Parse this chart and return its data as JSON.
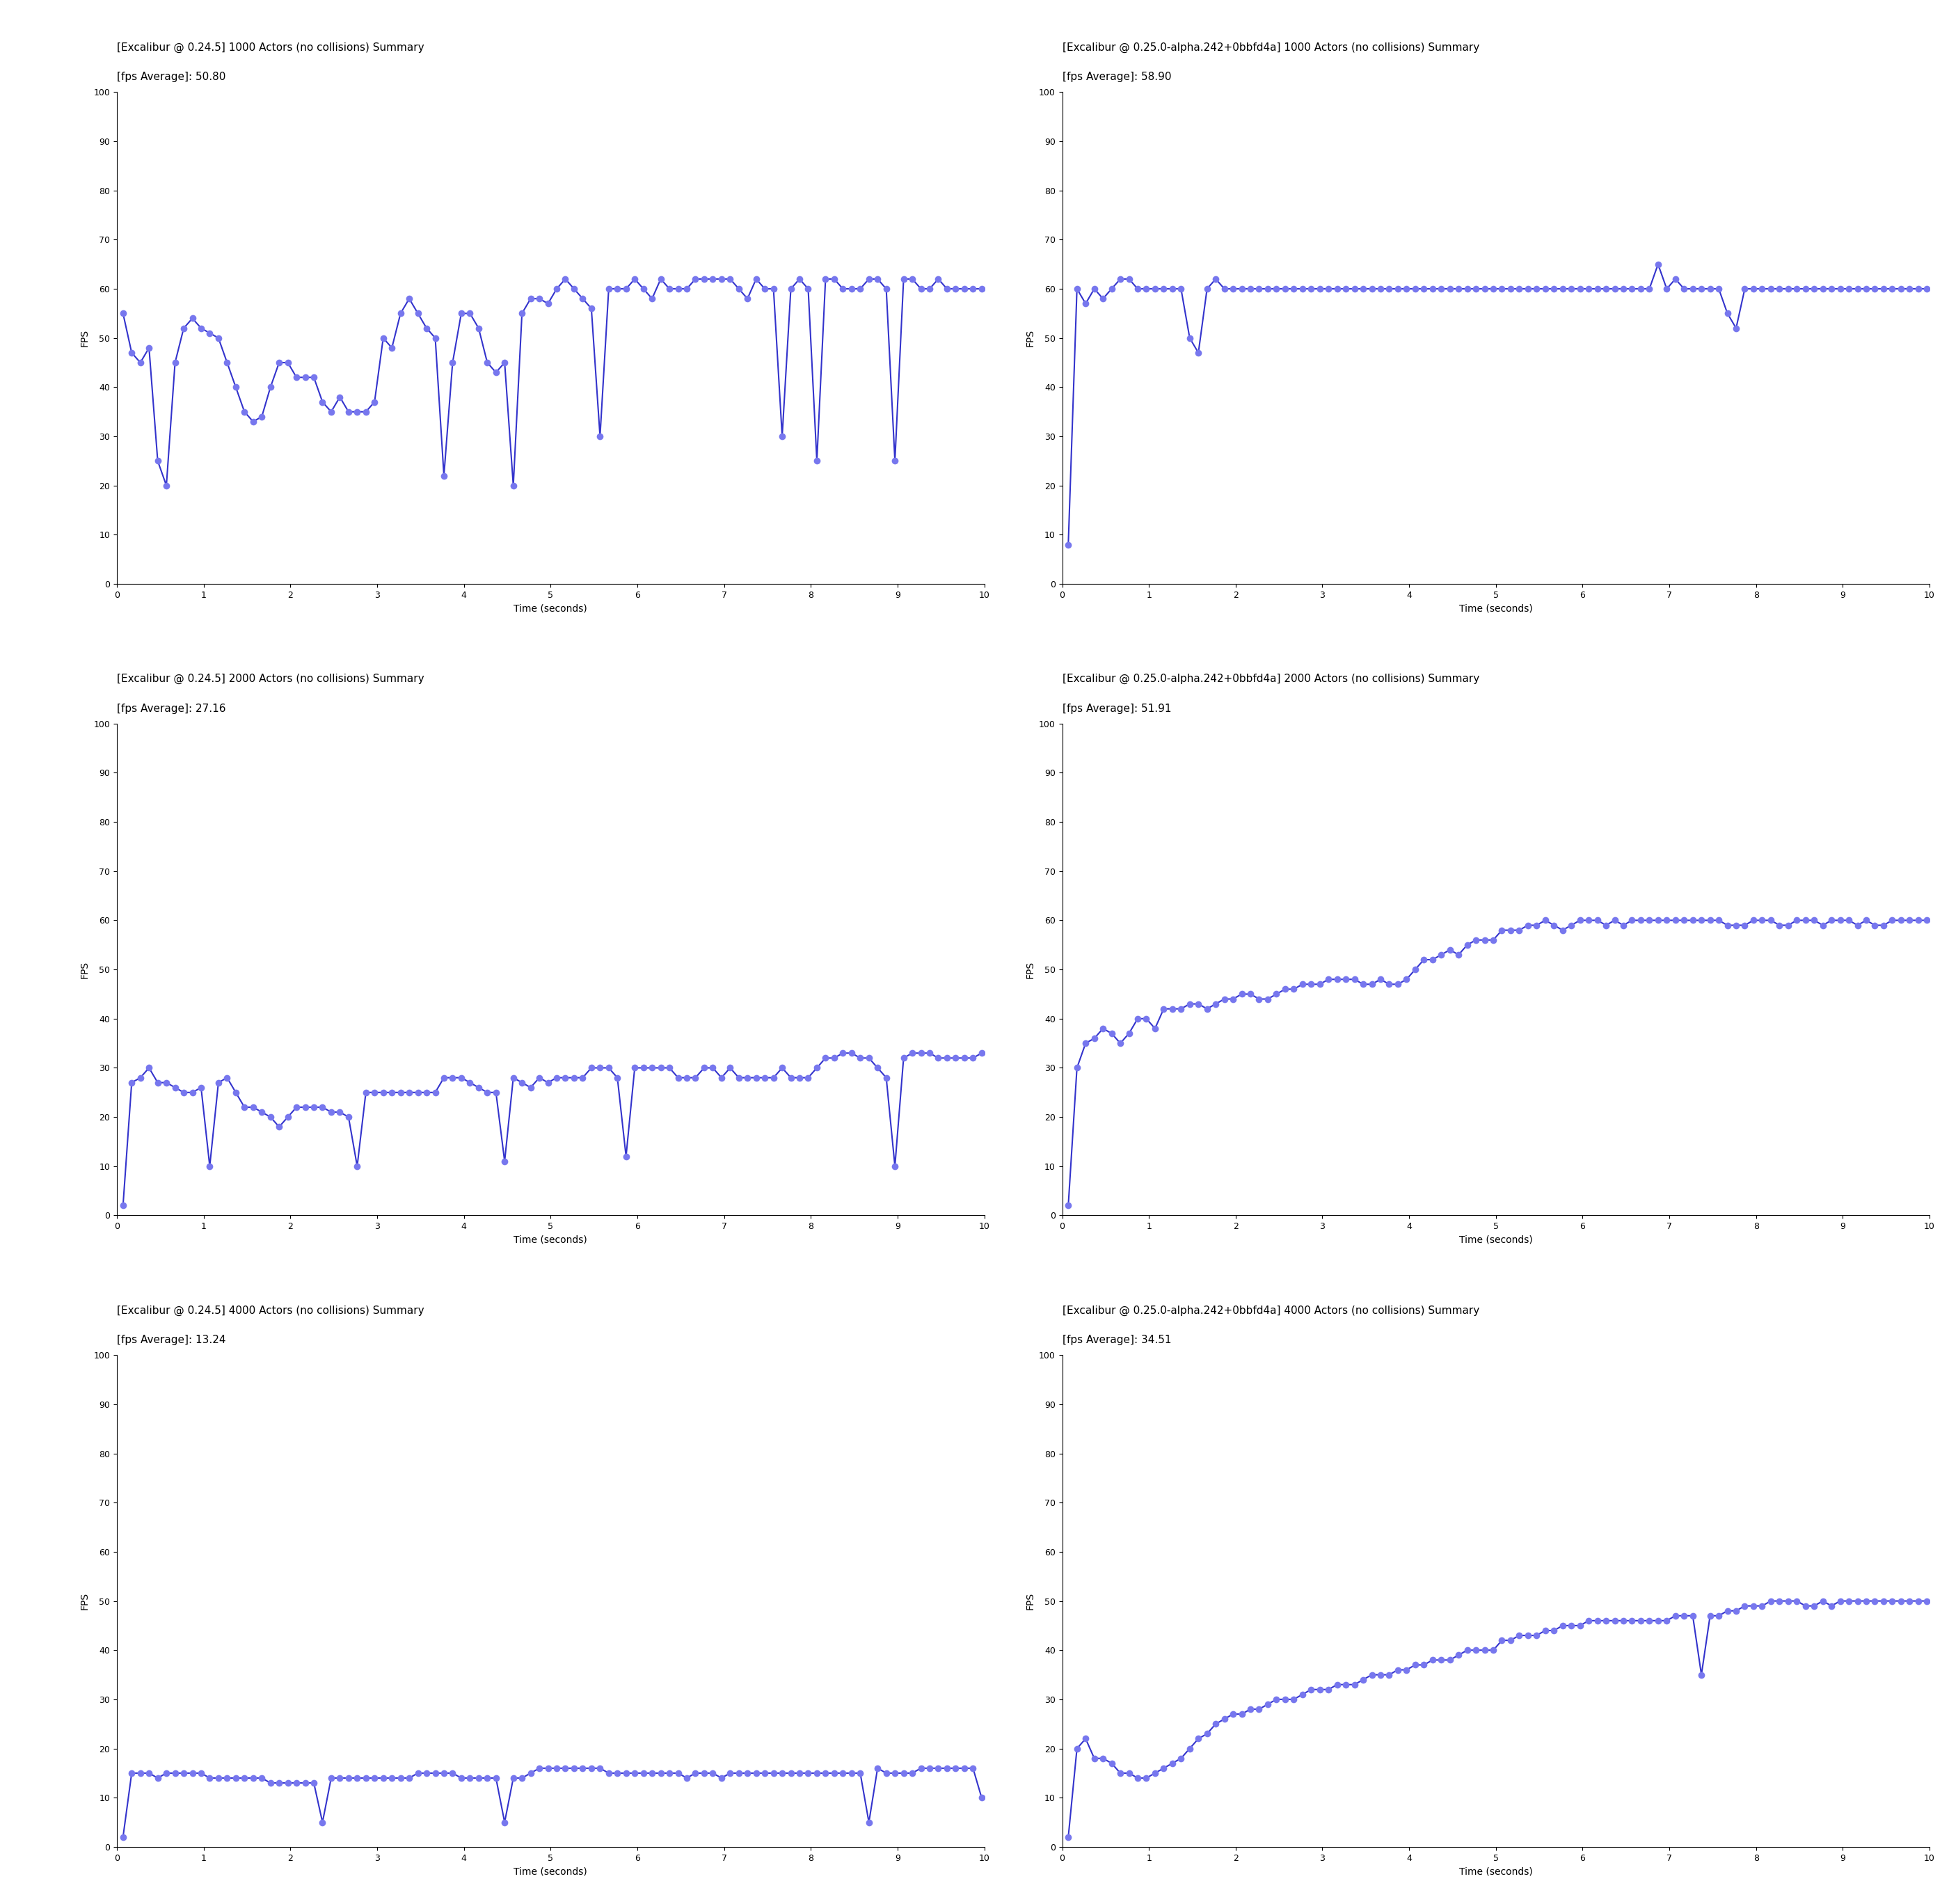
{
  "charts": [
    {
      "title_line1": "[Excalibur @ 0.24.5] 1000 Actors (no collisions) Summary",
      "title_line2": "[fps Average]: 50.80",
      "x": [
        0.07,
        0.17,
        0.27,
        0.37,
        0.47,
        0.57,
        0.67,
        0.77,
        0.87,
        0.97,
        1.07,
        1.17,
        1.27,
        1.37,
        1.47,
        1.57,
        1.67,
        1.77,
        1.87,
        1.97,
        2.07,
        2.17,
        2.27,
        2.37,
        2.47,
        2.57,
        2.67,
        2.77,
        2.87,
        2.97,
        3.07,
        3.17,
        3.27,
        3.37,
        3.47,
        3.57,
        3.67,
        3.77,
        3.87,
        3.97,
        4.07,
        4.17,
        4.27,
        4.37,
        4.47,
        4.57,
        4.67,
        4.77,
        4.87,
        4.97,
        5.07,
        5.17,
        5.27,
        5.37,
        5.47,
        5.57,
        5.67,
        5.77,
        5.87,
        5.97,
        6.07,
        6.17,
        6.27,
        6.37,
        6.47,
        6.57,
        6.67,
        6.77,
        6.87,
        6.97,
        7.07,
        7.17,
        7.27,
        7.37,
        7.47,
        7.57,
        7.67,
        7.77,
        7.87,
        7.97,
        8.07,
        8.17,
        8.27,
        8.37,
        8.47,
        8.57,
        8.67,
        8.77,
        8.87,
        8.97,
        9.07,
        9.17,
        9.27,
        9.37,
        9.47,
        9.57,
        9.67,
        9.77,
        9.87,
        9.97
      ],
      "y": [
        55,
        47,
        45,
        48,
        25,
        20,
        45,
        52,
        54,
        52,
        51,
        50,
        45,
        40,
        35,
        33,
        34,
        40,
        45,
        45,
        42,
        42,
        42,
        37,
        35,
        38,
        35,
        35,
        35,
        37,
        50,
        48,
        55,
        58,
        55,
        52,
        50,
        22,
        45,
        55,
        55,
        52,
        45,
        43,
        45,
        20,
        55,
        58,
        58,
        57,
        60,
        62,
        60,
        58,
        56,
        30,
        60,
        60,
        60,
        62,
        60,
        58,
        62,
        60,
        60,
        60,
        62,
        62,
        62,
        62,
        62,
        60,
        58,
        62,
        60,
        60,
        30,
        60,
        62,
        60,
        25,
        62,
        62,
        60,
        60,
        60,
        62,
        62,
        60,
        25,
        62,
        62,
        60,
        60,
        62,
        60,
        60,
        60,
        60,
        60
      ]
    },
    {
      "title_line1": "[Excalibur @ 0.25.0-alpha.242+0bbfd4a] 1000 Actors (no collisions) Summary",
      "title_line2": "[fps Average]: 58.90",
      "x": [
        0.07,
        0.17,
        0.27,
        0.37,
        0.47,
        0.57,
        0.67,
        0.77,
        0.87,
        0.97,
        1.07,
        1.17,
        1.27,
        1.37,
        1.47,
        1.57,
        1.67,
        1.77,
        1.87,
        1.97,
        2.07,
        2.17,
        2.27,
        2.37,
        2.47,
        2.57,
        2.67,
        2.77,
        2.87,
        2.97,
        3.07,
        3.17,
        3.27,
        3.37,
        3.47,
        3.57,
        3.67,
        3.77,
        3.87,
        3.97,
        4.07,
        4.17,
        4.27,
        4.37,
        4.47,
        4.57,
        4.67,
        4.77,
        4.87,
        4.97,
        5.07,
        5.17,
        5.27,
        5.37,
        5.47,
        5.57,
        5.67,
        5.77,
        5.87,
        5.97,
        6.07,
        6.17,
        6.27,
        6.37,
        6.47,
        6.57,
        6.67,
        6.77,
        6.87,
        6.97,
        7.07,
        7.17,
        7.27,
        7.37,
        7.47,
        7.57,
        7.67,
        7.77,
        7.87,
        7.97,
        8.07,
        8.17,
        8.27,
        8.37,
        8.47,
        8.57,
        8.67,
        8.77,
        8.87,
        8.97,
        9.07,
        9.17,
        9.27,
        9.37,
        9.47,
        9.57,
        9.67,
        9.77,
        9.87,
        9.97
      ],
      "y": [
        8,
        60,
        57,
        60,
        58,
        60,
        62,
        62,
        60,
        60,
        60,
        60,
        60,
        60,
        50,
        47,
        60,
        62,
        60,
        60,
        60,
        60,
        60,
        60,
        60,
        60,
        60,
        60,
        60,
        60,
        60,
        60,
        60,
        60,
        60,
        60,
        60,
        60,
        60,
        60,
        60,
        60,
        60,
        60,
        60,
        60,
        60,
        60,
        60,
        60,
        60,
        60,
        60,
        60,
        60,
        60,
        60,
        60,
        60,
        60,
        60,
        60,
        60,
        60,
        60,
        60,
        60,
        60,
        65,
        60,
        62,
        60,
        60,
        60,
        60,
        60,
        55,
        52,
        60,
        60,
        60,
        60,
        60,
        60,
        60,
        60,
        60,
        60,
        60,
        60,
        60,
        60,
        60,
        60,
        60,
        60,
        60,
        60,
        60,
        60
      ]
    },
    {
      "title_line1": "[Excalibur @ 0.24.5] 2000 Actors (no collisions) Summary",
      "title_line2": "[fps Average]: 27.16",
      "x": [
        0.07,
        0.17,
        0.27,
        0.37,
        0.47,
        0.57,
        0.67,
        0.77,
        0.87,
        0.97,
        1.07,
        1.17,
        1.27,
        1.37,
        1.47,
        1.57,
        1.67,
        1.77,
        1.87,
        1.97,
        2.07,
        2.17,
        2.27,
        2.37,
        2.47,
        2.57,
        2.67,
        2.77,
        2.87,
        2.97,
        3.07,
        3.17,
        3.27,
        3.37,
        3.47,
        3.57,
        3.67,
        3.77,
        3.87,
        3.97,
        4.07,
        4.17,
        4.27,
        4.37,
        4.47,
        4.57,
        4.67,
        4.77,
        4.87,
        4.97,
        5.07,
        5.17,
        5.27,
        5.37,
        5.47,
        5.57,
        5.67,
        5.77,
        5.87,
        5.97,
        6.07,
        6.17,
        6.27,
        6.37,
        6.47,
        6.57,
        6.67,
        6.77,
        6.87,
        6.97,
        7.07,
        7.17,
        7.27,
        7.37,
        7.47,
        7.57,
        7.67,
        7.77,
        7.87,
        7.97,
        8.07,
        8.17,
        8.27,
        8.37,
        8.47,
        8.57,
        8.67,
        8.77,
        8.87,
        8.97,
        9.07,
        9.17,
        9.27,
        9.37,
        9.47,
        9.57,
        9.67,
        9.77,
        9.87,
        9.97
      ],
      "y": [
        2,
        27,
        28,
        30,
        27,
        27,
        26,
        25,
        25,
        26,
        10,
        27,
        28,
        25,
        22,
        22,
        21,
        20,
        18,
        20,
        22,
        22,
        22,
        22,
        21,
        21,
        20,
        10,
        25,
        25,
        25,
        25,
        25,
        25,
        25,
        25,
        25,
        28,
        28,
        28,
        27,
        26,
        25,
        25,
        11,
        28,
        27,
        26,
        28,
        27,
        28,
        28,
        28,
        28,
        30,
        30,
        30,
        28,
        12,
        30,
        30,
        30,
        30,
        30,
        28,
        28,
        28,
        30,
        30,
        28,
        30,
        28,
        28,
        28,
        28,
        28,
        30,
        28,
        28,
        28,
        30,
        32,
        32,
        33,
        33,
        32,
        32,
        30,
        28,
        10,
        32,
        33,
        33,
        33,
        32,
        32,
        32,
        32,
        32,
        33
      ]
    },
    {
      "title_line1": "[Excalibur @ 0.25.0-alpha.242+0bbfd4a] 2000 Actors (no collisions) Summary",
      "title_line2": "[fps Average]: 51.91",
      "x": [
        0.07,
        0.17,
        0.27,
        0.37,
        0.47,
        0.57,
        0.67,
        0.77,
        0.87,
        0.97,
        1.07,
        1.17,
        1.27,
        1.37,
        1.47,
        1.57,
        1.67,
        1.77,
        1.87,
        1.97,
        2.07,
        2.17,
        2.27,
        2.37,
        2.47,
        2.57,
        2.67,
        2.77,
        2.87,
        2.97,
        3.07,
        3.17,
        3.27,
        3.37,
        3.47,
        3.57,
        3.67,
        3.77,
        3.87,
        3.97,
        4.07,
        4.17,
        4.27,
        4.37,
        4.47,
        4.57,
        4.67,
        4.77,
        4.87,
        4.97,
        5.07,
        5.17,
        5.27,
        5.37,
        5.47,
        5.57,
        5.67,
        5.77,
        5.87,
        5.97,
        6.07,
        6.17,
        6.27,
        6.37,
        6.47,
        6.57,
        6.67,
        6.77,
        6.87,
        6.97,
        7.07,
        7.17,
        7.27,
        7.37,
        7.47,
        7.57,
        7.67,
        7.77,
        7.87,
        7.97,
        8.07,
        8.17,
        8.27,
        8.37,
        8.47,
        8.57,
        8.67,
        8.77,
        8.87,
        8.97,
        9.07,
        9.17,
        9.27,
        9.37,
        9.47,
        9.57,
        9.67,
        9.77,
        9.87,
        9.97
      ],
      "y": [
        2,
        30,
        35,
        36,
        38,
        37,
        35,
        37,
        40,
        40,
        38,
        42,
        42,
        42,
        43,
        43,
        42,
        43,
        44,
        44,
        45,
        45,
        44,
        44,
        45,
        46,
        46,
        47,
        47,
        47,
        48,
        48,
        48,
        48,
        47,
        47,
        48,
        47,
        47,
        48,
        50,
        52,
        52,
        53,
        54,
        53,
        55,
        56,
        56,
        56,
        58,
        58,
        58,
        59,
        59,
        60,
        59,
        58,
        59,
        60,
        60,
        60,
        59,
        60,
        59,
        60,
        60,
        60,
        60,
        60,
        60,
        60,
        60,
        60,
        60,
        60,
        59,
        59,
        59,
        60,
        60,
        60,
        59,
        59,
        60,
        60,
        60,
        59,
        60,
        60,
        60,
        59,
        60,
        59,
        59,
        60,
        60,
        60,
        60,
        60
      ]
    },
    {
      "title_line1": "[Excalibur @ 0.24.5] 4000 Actors (no collisions) Summary",
      "title_line2": "[fps Average]: 13.24",
      "x": [
        0.07,
        0.17,
        0.27,
        0.37,
        0.47,
        0.57,
        0.67,
        0.77,
        0.87,
        0.97,
        1.07,
        1.17,
        1.27,
        1.37,
        1.47,
        1.57,
        1.67,
        1.77,
        1.87,
        1.97,
        2.07,
        2.17,
        2.27,
        2.37,
        2.47,
        2.57,
        2.67,
        2.77,
        2.87,
        2.97,
        3.07,
        3.17,
        3.27,
        3.37,
        3.47,
        3.57,
        3.67,
        3.77,
        3.87,
        3.97,
        4.07,
        4.17,
        4.27,
        4.37,
        4.47,
        4.57,
        4.67,
        4.77,
        4.87,
        4.97,
        5.07,
        5.17,
        5.27,
        5.37,
        5.47,
        5.57,
        5.67,
        5.77,
        5.87,
        5.97,
        6.07,
        6.17,
        6.27,
        6.37,
        6.47,
        6.57,
        6.67,
        6.77,
        6.87,
        6.97,
        7.07,
        7.17,
        7.27,
        7.37,
        7.47,
        7.57,
        7.67,
        7.77,
        7.87,
        7.97,
        8.07,
        8.17,
        8.27,
        8.37,
        8.47,
        8.57,
        8.67,
        8.77,
        8.87,
        8.97,
        9.07,
        9.17,
        9.27,
        9.37,
        9.47,
        9.57,
        9.67,
        9.77,
        9.87,
        9.97
      ],
      "y": [
        2,
        15,
        15,
        15,
        14,
        15,
        15,
        15,
        15,
        15,
        14,
        14,
        14,
        14,
        14,
        14,
        14,
        13,
        13,
        13,
        13,
        13,
        13,
        5,
        14,
        14,
        14,
        14,
        14,
        14,
        14,
        14,
        14,
        14,
        15,
        15,
        15,
        15,
        15,
        14,
        14,
        14,
        14,
        14,
        5,
        14,
        14,
        15,
        16,
        16,
        16,
        16,
        16,
        16,
        16,
        16,
        15,
        15,
        15,
        15,
        15,
        15,
        15,
        15,
        15,
        14,
        15,
        15,
        15,
        14,
        15,
        15,
        15,
        15,
        15,
        15,
        15,
        15,
        15,
        15,
        15,
        15,
        15,
        15,
        15,
        15,
        5,
        16,
        15,
        15,
        15,
        15,
        16,
        16,
        16,
        16,
        16,
        16,
        16,
        10
      ]
    },
    {
      "title_line1": "[Excalibur @ 0.25.0-alpha.242+0bbfd4a] 4000 Actors (no collisions) Summary",
      "title_line2": "[fps Average]: 34.51",
      "x": [
        0.07,
        0.17,
        0.27,
        0.37,
        0.47,
        0.57,
        0.67,
        0.77,
        0.87,
        0.97,
        1.07,
        1.17,
        1.27,
        1.37,
        1.47,
        1.57,
        1.67,
        1.77,
        1.87,
        1.97,
        2.07,
        2.17,
        2.27,
        2.37,
        2.47,
        2.57,
        2.67,
        2.77,
        2.87,
        2.97,
        3.07,
        3.17,
        3.27,
        3.37,
        3.47,
        3.57,
        3.67,
        3.77,
        3.87,
        3.97,
        4.07,
        4.17,
        4.27,
        4.37,
        4.47,
        4.57,
        4.67,
        4.77,
        4.87,
        4.97,
        5.07,
        5.17,
        5.27,
        5.37,
        5.47,
        5.57,
        5.67,
        5.77,
        5.87,
        5.97,
        6.07,
        6.17,
        6.27,
        6.37,
        6.47,
        6.57,
        6.67,
        6.77,
        6.87,
        6.97,
        7.07,
        7.17,
        7.27,
        7.37,
        7.47,
        7.57,
        7.67,
        7.77,
        7.87,
        7.97,
        8.07,
        8.17,
        8.27,
        8.37,
        8.47,
        8.57,
        8.67,
        8.77,
        8.87,
        8.97,
        9.07,
        9.17,
        9.27,
        9.37,
        9.47,
        9.57,
        9.67,
        9.77,
        9.87,
        9.97
      ],
      "y": [
        2,
        20,
        22,
        18,
        18,
        17,
        15,
        15,
        14,
        14,
        15,
        16,
        17,
        18,
        20,
        22,
        23,
        25,
        26,
        27,
        27,
        28,
        28,
        29,
        30,
        30,
        30,
        31,
        32,
        32,
        32,
        33,
        33,
        33,
        34,
        35,
        35,
        35,
        36,
        36,
        37,
        37,
        38,
        38,
        38,
        39,
        40,
        40,
        40,
        40,
        42,
        42,
        43,
        43,
        43,
        44,
        44,
        45,
        45,
        45,
        46,
        46,
        46,
        46,
        46,
        46,
        46,
        46,
        46,
        46,
        47,
        47,
        47,
        35,
        47,
        47,
        48,
        48,
        49,
        49,
        49,
        50,
        50,
        50,
        50,
        49,
        49,
        50,
        49,
        50,
        50,
        50,
        50,
        50,
        50,
        50,
        50,
        50,
        50,
        50
      ]
    }
  ],
  "xlim": [
    0,
    10
  ],
  "ylim": [
    0,
    100
  ],
  "xlabel": "Time (seconds)",
  "ylabel": "FPS",
  "xticks": [
    0,
    1,
    2,
    3,
    4,
    5,
    6,
    7,
    8,
    9,
    10
  ],
  "yticks": [
    0,
    10,
    20,
    30,
    40,
    50,
    60,
    70,
    80,
    90,
    100
  ],
  "line_color": "#3333cc",
  "marker_color": "#7777ee",
  "marker_size": 7,
  "line_width": 1.5,
  "title_fontsize": 11,
  "label_fontsize": 10,
  "tick_fontsize": 9,
  "background_color": "#ffffff",
  "grid_rows": 3,
  "grid_cols": 2
}
